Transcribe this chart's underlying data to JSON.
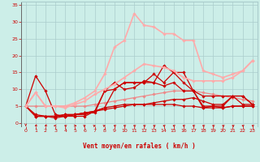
{
  "background_color": "#cceee8",
  "grid_color": "#aacccc",
  "xlabel": "Vent moyen/en rafales ( km/h )",
  "xlabel_color": "#cc0000",
  "tick_color": "#cc0000",
  "ylim": [
    -1,
    36
  ],
  "xlim": [
    -0.5,
    23.5
  ],
  "yticks": [
    0,
    5,
    10,
    15,
    20,
    25,
    30,
    35
  ],
  "xticks": [
    0,
    1,
    2,
    3,
    4,
    5,
    6,
    7,
    8,
    9,
    10,
    11,
    12,
    13,
    14,
    15,
    16,
    17,
    18,
    19,
    20,
    21,
    22,
    23
  ],
  "series": [
    {
      "x": [
        0,
        1,
        2,
        3,
        4,
        5,
        6,
        7,
        8,
        9,
        10,
        11,
        12,
        13,
        14,
        15,
        16,
        17,
        18,
        19,
        20,
        21,
        22,
        23
      ],
      "y": [
        5,
        5,
        5,
        5,
        5,
        5,
        5,
        5.5,
        6,
        6.5,
        7,
        7.5,
        8,
        8.5,
        9,
        9.5,
        9.5,
        9.5,
        9,
        8.5,
        8,
        7.5,
        7,
        6.5
      ],
      "color": "#ee8888",
      "lw": 0.9,
      "marker": "D",
      "ms": 1.8
    },
    {
      "x": [
        0,
        1,
        2,
        3,
        4,
        5,
        6,
        7,
        8,
        9,
        10,
        11,
        12,
        13,
        14,
        15,
        16,
        17,
        18,
        19,
        20,
        21,
        22,
        23
      ],
      "y": [
        5,
        2,
        2,
        2,
        2,
        2.5,
        3,
        3.5,
        4,
        4.5,
        5,
        5.5,
        5.5,
        5.5,
        5.5,
        5.5,
        5,
        5,
        4.5,
        4.5,
        4.5,
        5,
        5,
        5
      ],
      "color": "#cc0000",
      "lw": 0.9,
      "marker": "D",
      "ms": 1.8
    },
    {
      "x": [
        0,
        1,
        2,
        3,
        4,
        5,
        6,
        7,
        8,
        9,
        10,
        11,
        12,
        13,
        14,
        15,
        16,
        17,
        18,
        19,
        20,
        21,
        22,
        23
      ],
      "y": [
        5,
        2,
        2,
        2,
        2.5,
        2.5,
        3,
        3.5,
        4.5,
        5,
        5.5,
        5.5,
        5.5,
        6,
        6.5,
        7,
        7,
        7.5,
        6.5,
        5.5,
        5.5,
        8,
        8,
        5.5
      ],
      "color": "#cc0000",
      "lw": 0.9,
      "marker": "D",
      "ms": 1.8
    },
    {
      "x": [
        0,
        1,
        2,
        3,
        4,
        5,
        6,
        7,
        8,
        9,
        10,
        11,
        12,
        13,
        14,
        15,
        16,
        17,
        18,
        19,
        20,
        21,
        22,
        23
      ],
      "y": [
        5,
        2.5,
        2,
        1.5,
        2,
        2.5,
        2.5,
        3.5,
        4.5,
        10,
        12,
        12,
        12,
        14.5,
        12,
        15,
        12,
        9.5,
        4.5,
        5,
        5,
        8,
        8,
        5.5
      ],
      "color": "#cc0000",
      "lw": 0.9,
      "marker": "D",
      "ms": 1.8
    },
    {
      "x": [
        0,
        1,
        2,
        3,
        4,
        5,
        6,
        7,
        8,
        9,
        10,
        11,
        12,
        13,
        14,
        15,
        16,
        17,
        18,
        19,
        20,
        21,
        22,
        23
      ],
      "y": [
        5,
        14,
        9.5,
        2.5,
        2,
        2,
        2,
        3.5,
        9.5,
        12,
        10,
        10.5,
        12.5,
        12,
        17,
        15,
        15,
        9.5,
        8,
        8,
        8,
        8,
        5.5,
        5.5
      ],
      "color": "#cc0000",
      "lw": 0.9,
      "marker": "D",
      "ms": 1.8
    },
    {
      "x": [
        0,
        1,
        2,
        3,
        4,
        5,
        6,
        7,
        8,
        9,
        10,
        11,
        12,
        13,
        14,
        15,
        16,
        17,
        18,
        19,
        20,
        21,
        22,
        23
      ],
      "y": [
        5,
        2,
        2,
        2,
        2.5,
        2.5,
        3,
        3,
        9.5,
        10,
        12,
        12,
        12,
        12,
        11,
        12,
        9.5,
        9.5,
        5,
        5,
        4.5,
        5,
        5,
        5
      ],
      "color": "#cc0000",
      "lw": 0.9,
      "marker": "D",
      "ms": 1.8
    },
    {
      "x": [
        0,
        1,
        2,
        3,
        4,
        5,
        6,
        7,
        8,
        9,
        10,
        11,
        12,
        13,
        14,
        15,
        16,
        17,
        18,
        19,
        20,
        21,
        22,
        23
      ],
      "y": [
        5,
        9,
        5,
        5,
        4.5,
        5.5,
        6.5,
        8.5,
        10,
        11.5,
        13.5,
        15.5,
        17.5,
        17,
        16.5,
        15.5,
        13.5,
        12.5,
        12.5,
        12.5,
        12.5,
        13.5,
        15.5,
        18.5
      ],
      "color": "#ffaaaa",
      "lw": 1.2,
      "marker": "D",
      "ms": 1.8
    },
    {
      "x": [
        0,
        1,
        2,
        3,
        4,
        5,
        6,
        7,
        8,
        9,
        10,
        11,
        12,
        13,
        14,
        15,
        16,
        17,
        18,
        19,
        20,
        21,
        22,
        23
      ],
      "y": [
        5,
        9,
        5,
        5,
        5,
        6,
        7.5,
        9.5,
        14.5,
        22.5,
        24.5,
        32.5,
        29,
        28.5,
        26.5,
        26.5,
        24.5,
        24.5,
        15.5,
        14.5,
        13.5,
        14.5,
        15.5,
        18.5
      ],
      "color": "#ffaaaa",
      "lw": 1.2,
      "marker": "D",
      "ms": 1.8
    }
  ],
  "wind_directions": [
    180,
    225,
    225,
    270,
    315,
    90,
    45,
    45,
    45,
    315,
    315,
    315,
    315,
    315,
    315,
    315,
    315,
    315,
    315,
    315,
    315,
    315,
    315,
    315
  ],
  "arrow_color": "#cc0000"
}
